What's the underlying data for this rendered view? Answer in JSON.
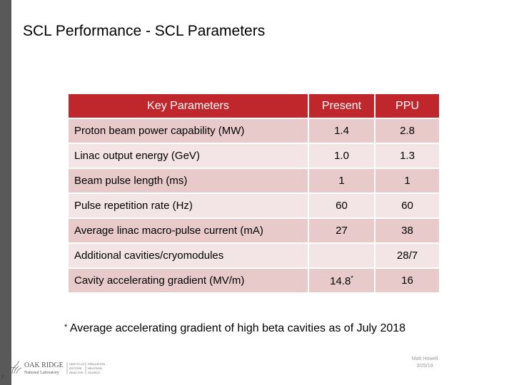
{
  "slide": {
    "title": "SCL Performance - SCL Parameters",
    "page_number": "7",
    "presenter": "Matt Howell",
    "date": "3/25/19"
  },
  "table": {
    "headers": [
      "Key Parameters",
      "Present",
      "PPU"
    ],
    "rows": [
      {
        "label": "Proton beam power capability (MW)",
        "present": "1.4",
        "ppu": "2.8"
      },
      {
        "label": "Linac output energy (GeV)",
        "present": "1.0",
        "ppu": "1.3"
      },
      {
        "label": "Beam pulse length (ms)",
        "present": "1",
        "ppu": "1"
      },
      {
        "label": "Pulse repetition rate (Hz)",
        "present": "60",
        "ppu": "60"
      },
      {
        "label": "Average linac macro-pulse current (mA)",
        "present": "27",
        "ppu": "38"
      },
      {
        "label": "Additional cavities/cryomodules",
        "present": "",
        "ppu": "28/7"
      },
      {
        "label": "Cavity accelerating gradient (MV/m)",
        "present": "14.8",
        "present_mark": "*",
        "ppu": "16"
      }
    ]
  },
  "footnote": {
    "marker": "*",
    "text": "Average accelerating gradient of high beta cavities as of July 2018"
  },
  "logo": {
    "icon": "oak-ridge-logo-icon",
    "name_line1": "OAK RIDGE",
    "name_line2": "National Laboratory",
    "col1": [
      "HIGH FLUX",
      "ISOTOPE",
      "REACTOR"
    ],
    "col2": [
      "SPALLATION",
      "NEUTRON",
      "SOURCE"
    ]
  },
  "colors": {
    "header": "#c0272d",
    "row_a": "#e8cacb",
    "row_b": "#f3e4e5",
    "left_bar": "#595959"
  }
}
